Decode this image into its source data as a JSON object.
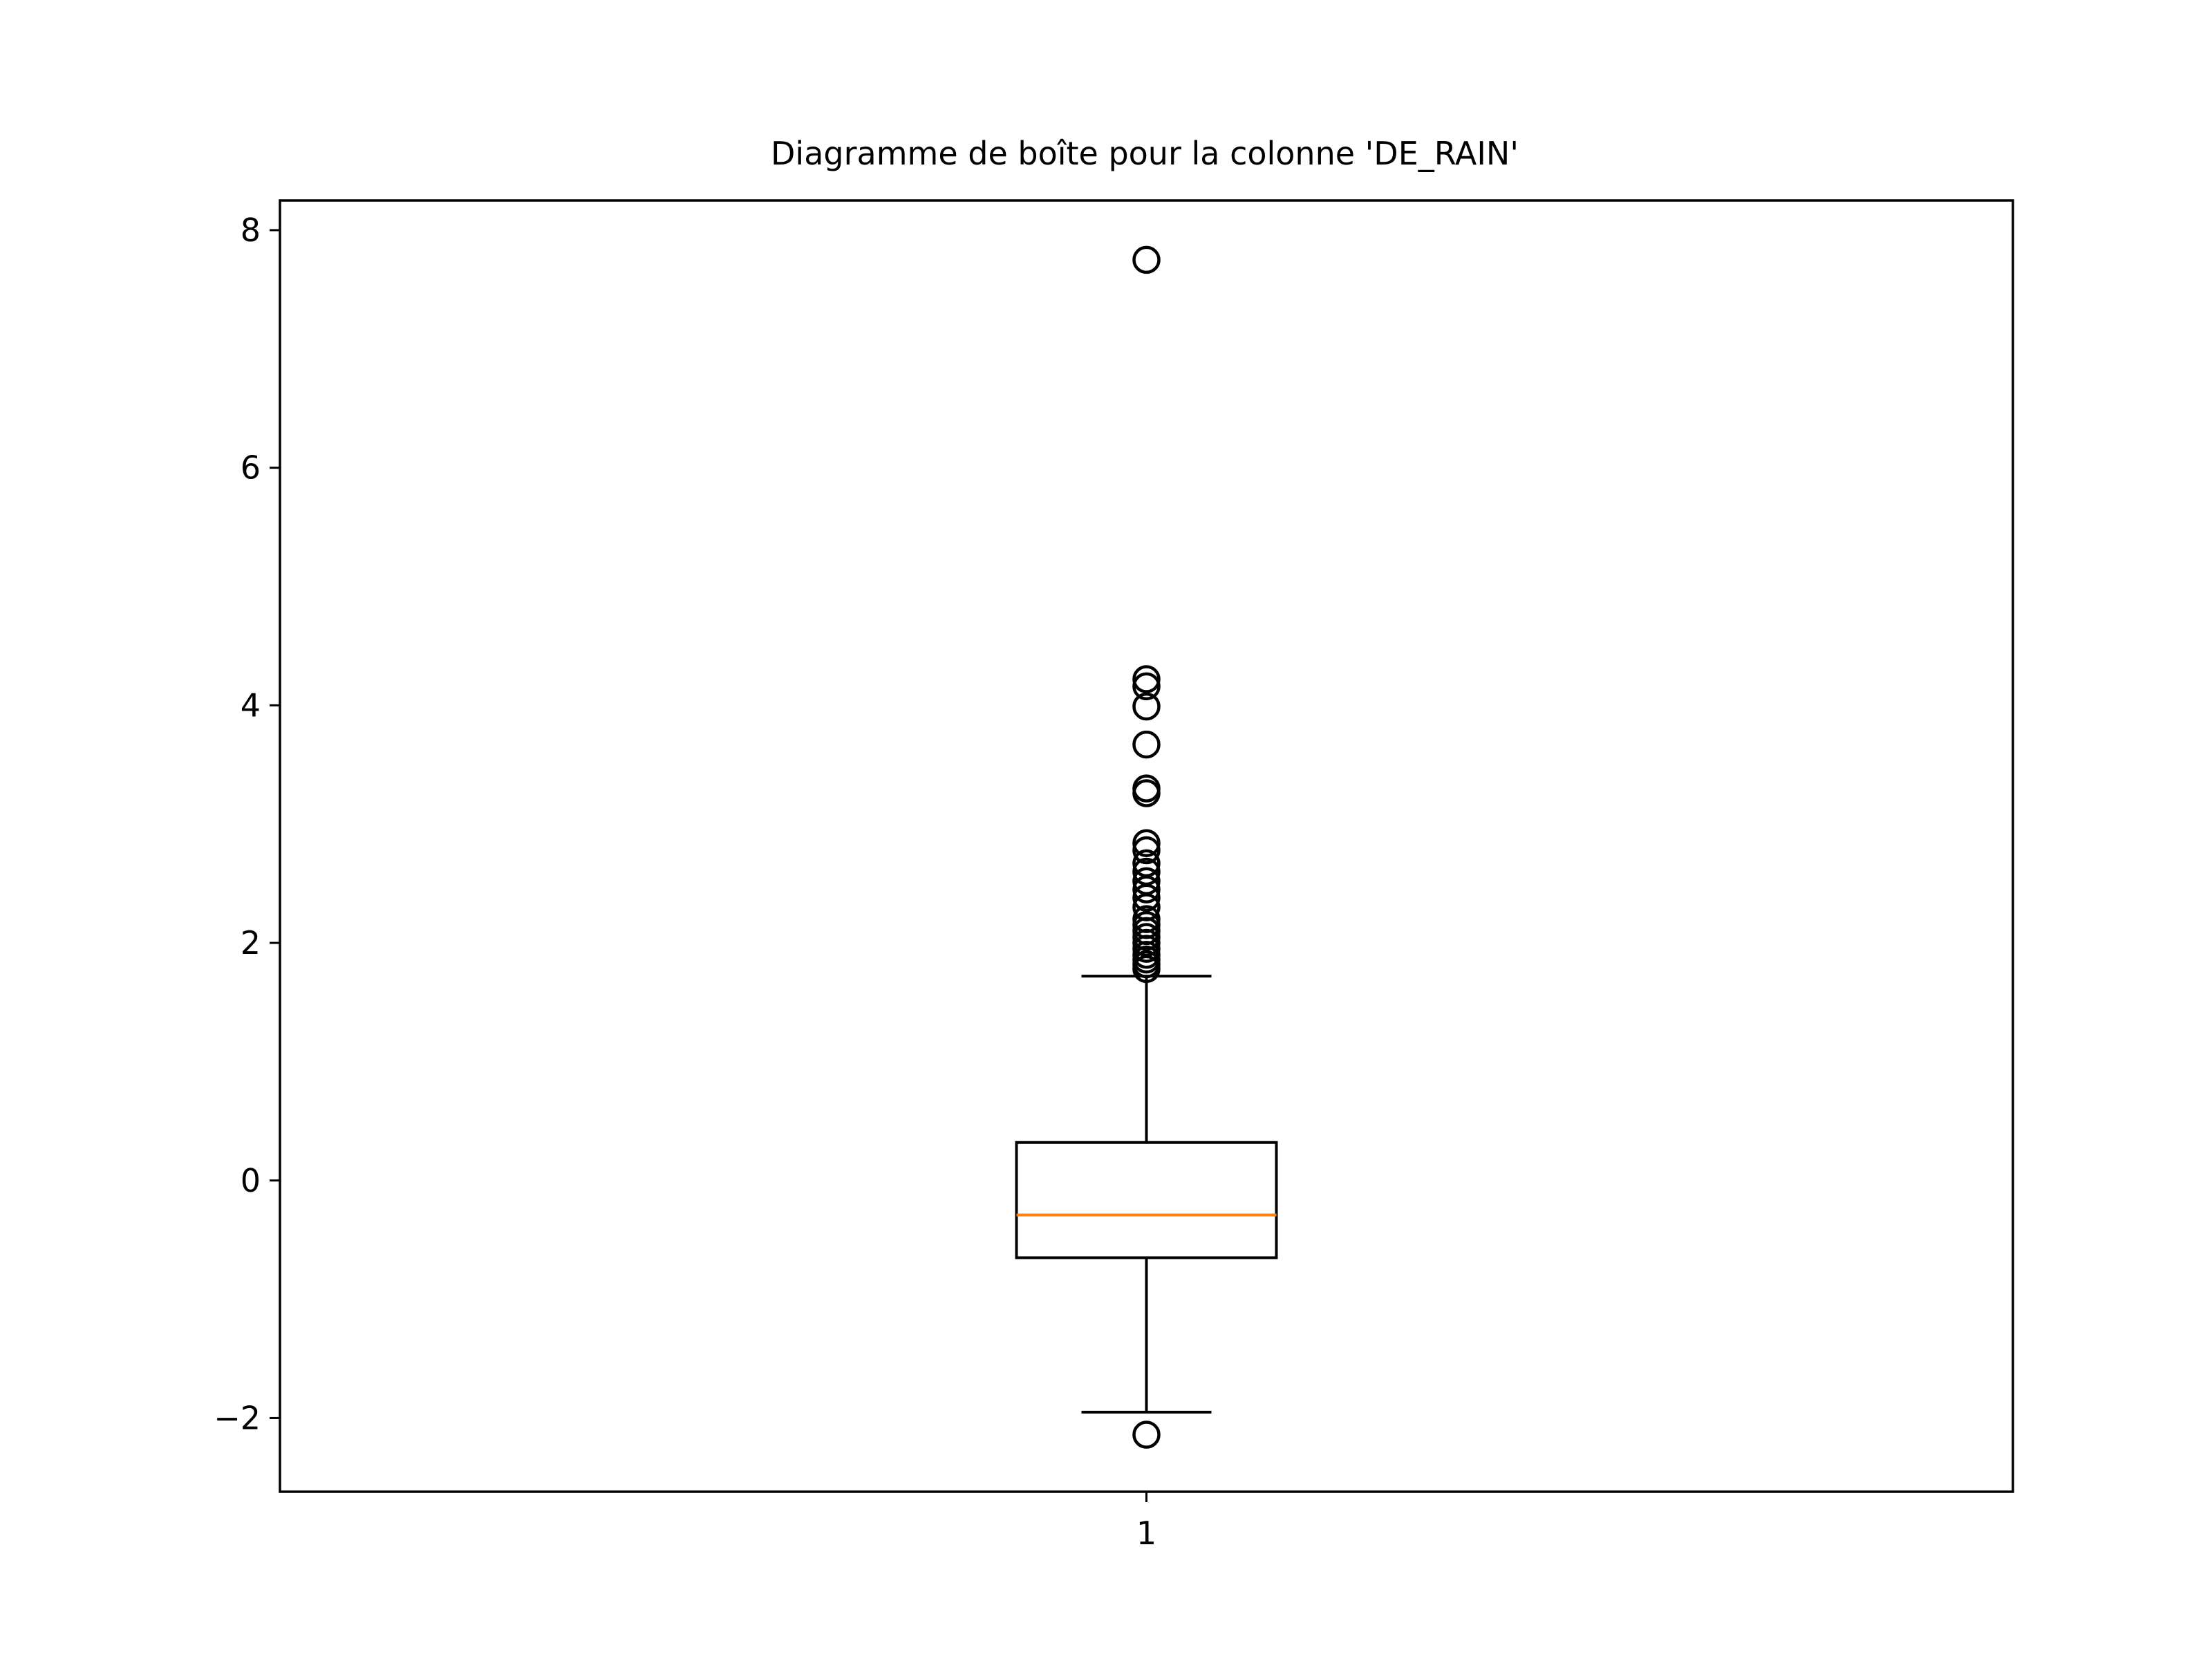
{
  "chart_data": {
    "type": "box",
    "title": "Diagramme de boîte pour la colonne 'DE_RAIN'",
    "xlabel": "",
    "ylabel": "",
    "categories": [
      "1"
    ],
    "ylim": [
      -2.62,
      8.25
    ],
    "yticks": [
      -2,
      0,
      2,
      4,
      6,
      8
    ],
    "ytick_labels": [
      "−2",
      "0",
      "2",
      "4",
      "6",
      "8"
    ],
    "grid": false,
    "box": {
      "whisker_low": -1.95,
      "q1": -0.65,
      "median": -0.29,
      "q3": 0.32,
      "whisker_high": 1.72
    },
    "outliers": [
      -2.14,
      1.78,
      1.82,
      1.86,
      1.9,
      1.95,
      2.0,
      2.05,
      2.1,
      2.15,
      2.2,
      2.3,
      2.38,
      2.45,
      2.52,
      2.6,
      2.67,
      2.78,
      2.84,
      3.26,
      3.3,
      3.67,
      3.99,
      4.16,
      4.22,
      7.75
    ],
    "colors": {
      "box": "#000000",
      "median": "#ff7f0e",
      "outlier_edge": "#000000"
    }
  }
}
